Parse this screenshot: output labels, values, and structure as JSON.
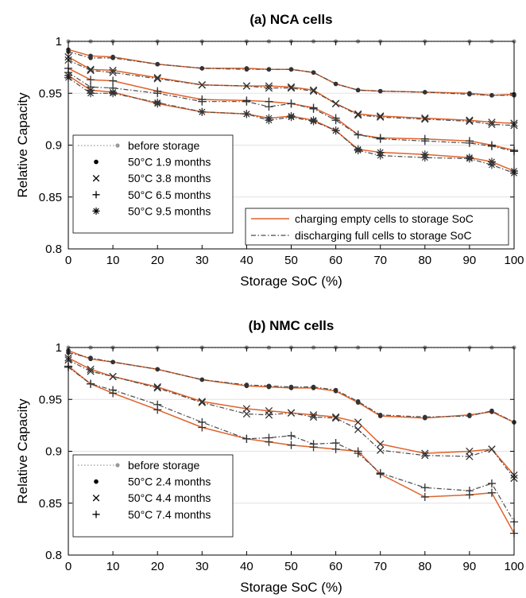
{
  "chart_data": [
    {
      "type": "line",
      "title": "(a) NCA cells",
      "xlabel": "Storage SoC (%)",
      "ylabel": "Relative Capacity",
      "xlim": [
        0,
        100
      ],
      "ylim": [
        0.8,
        1.0
      ],
      "xticks": [
        0,
        10,
        20,
        30,
        40,
        50,
        60,
        70,
        80,
        90,
        100
      ],
      "yticks": [
        0.8,
        0.85,
        0.9,
        0.95,
        1.0
      ],
      "ytick_labels": [
        "0.8",
        "0.85",
        "0.9",
        "0.95",
        "1"
      ],
      "grid": "horizontal",
      "x": [
        0,
        5,
        10,
        20,
        30,
        40,
        45,
        50,
        55,
        60,
        65,
        70,
        80,
        90,
        95,
        100
      ],
      "before_storage": 1.0,
      "series": [
        {
          "name": "50°C  1.9 months",
          "marker": "dot",
          "charging": [
            0.992,
            0.986,
            0.985,
            0.978,
            0.974,
            0.974,
            0.973,
            0.973,
            0.97,
            0.959,
            0.953,
            0.952,
            0.951,
            0.95,
            0.948,
            0.949
          ],
          "discharging": [
            0.99,
            0.984,
            0.984,
            0.978,
            0.974,
            0.973,
            0.973,
            0.973,
            0.97,
            0.959,
            0.953,
            0.952,
            0.951,
            0.949,
            0.948,
            0.948
          ]
        },
        {
          "name": "50°C  3.8 months",
          "marker": "x",
          "charging": [
            0.985,
            0.973,
            0.972,
            0.965,
            0.958,
            0.957,
            0.957,
            0.956,
            0.953,
            0.94,
            0.93,
            0.928,
            0.926,
            0.924,
            0.922,
            0.921
          ],
          "discharging": [
            0.982,
            0.972,
            0.97,
            0.964,
            0.958,
            0.957,
            0.955,
            0.955,
            0.952,
            0.94,
            0.929,
            0.927,
            0.925,
            0.923,
            0.92,
            0.919
          ]
        },
        {
          "name": "50°C  6.5 months",
          "marker": "plus",
          "charging": [
            0.974,
            0.963,
            0.962,
            0.952,
            0.944,
            0.943,
            0.942,
            0.94,
            0.936,
            0.926,
            0.91,
            0.907,
            0.906,
            0.904,
            0.9,
            0.895
          ],
          "discharging": [
            0.97,
            0.956,
            0.955,
            0.95,
            0.942,
            0.942,
            0.937,
            0.94,
            0.935,
            0.924,
            0.91,
            0.906,
            0.904,
            0.902,
            0.899,
            0.894
          ]
        },
        {
          "name": "50°C  9.5 months",
          "marker": "asterisk",
          "charging": [
            0.967,
            0.953,
            0.951,
            0.94,
            0.932,
            0.93,
            0.926,
            0.928,
            0.924,
            0.914,
            0.896,
            0.893,
            0.891,
            0.888,
            0.884,
            0.875
          ],
          "discharging": [
            0.965,
            0.95,
            0.95,
            0.941,
            0.932,
            0.93,
            0.924,
            0.927,
            0.923,
            0.914,
            0.895,
            0.89,
            0.888,
            0.887,
            0.881,
            0.873
          ]
        }
      ],
      "legend_markers": [
        "before storage",
        "50°C  1.9 months",
        "50°C  3.8 months",
        "50°C  6.5 months",
        "50°C  9.5 months"
      ],
      "legend_markers_position": "bottom-left",
      "legend_lines": [
        "charging empty cells to storage SoC",
        "discharging full cells to storage SoC"
      ],
      "legend_lines_position": "bottom-right"
    },
    {
      "type": "line",
      "title": "(b) NMC cells",
      "xlabel": "Storage SoC (%)",
      "ylabel": "Relative Capacity",
      "xlim": [
        0,
        100
      ],
      "ylim": [
        0.8,
        1.0
      ],
      "xticks": [
        0,
        10,
        20,
        30,
        40,
        50,
        60,
        70,
        80,
        90,
        100
      ],
      "yticks": [
        0.8,
        0.85,
        0.9,
        0.95,
        1.0
      ],
      "ytick_labels": [
        "0.8",
        "0.85",
        "0.9",
        "0.95",
        "1"
      ],
      "grid": "horizontal",
      "x": [
        0,
        5,
        10,
        20,
        30,
        40,
        45,
        50,
        55,
        60,
        65,
        70,
        80,
        90,
        95,
        100
      ],
      "before_storage": 1.0,
      "series": [
        {
          "name": "50°C  2.4 months",
          "marker": "dot",
          "charging": [
            0.997,
            0.989,
            0.986,
            0.979,
            0.969,
            0.963,
            0.962,
            0.961,
            0.961,
            0.958,
            0.947,
            0.934,
            0.932,
            0.935,
            0.938,
            0.928
          ],
          "discharging": [
            0.995,
            0.99,
            0.986,
            0.979,
            0.969,
            0.964,
            0.963,
            0.962,
            0.962,
            0.959,
            0.948,
            0.935,
            0.933,
            0.934,
            0.939,
            0.928
          ]
        },
        {
          "name": "50°C  4.4 months",
          "marker": "x",
          "charging": [
            0.99,
            0.979,
            0.972,
            0.962,
            0.948,
            0.941,
            0.939,
            0.937,
            0.935,
            0.933,
            0.928,
            0.907,
            0.898,
            0.9,
            0.902,
            0.877
          ],
          "discharging": [
            0.988,
            0.977,
            0.972,
            0.961,
            0.947,
            0.936,
            0.935,
            0.937,
            0.933,
            0.932,
            0.921,
            0.901,
            0.896,
            0.895,
            0.902,
            0.874
          ]
        },
        {
          "name": "50°C  7.4 months",
          "marker": "plus",
          "charging": [
            0.982,
            0.965,
            0.956,
            0.94,
            0.923,
            0.912,
            0.909,
            0.906,
            0.904,
            0.902,
            0.9,
            0.878,
            0.856,
            0.858,
            0.86,
            0.821
          ],
          "discharging": [
            0.981,
            0.965,
            0.959,
            0.945,
            0.928,
            0.912,
            0.913,
            0.915,
            0.907,
            0.908,
            0.898,
            0.879,
            0.865,
            0.862,
            0.869,
            0.832
          ]
        }
      ],
      "legend_markers": [
        "before storage",
        "50°C  2.4 months",
        "50°C  4.4 months",
        "50°C  7.4 months"
      ],
      "legend_markers_position": "bottom-left"
    }
  ],
  "colors": {
    "charging": "#e0622a",
    "discharging": "#4a4a4a",
    "before": "#999999",
    "grid": "#e2e2e2",
    "marker": "#333333",
    "legend_marker": "#000000",
    "axis": "#000000"
  }
}
